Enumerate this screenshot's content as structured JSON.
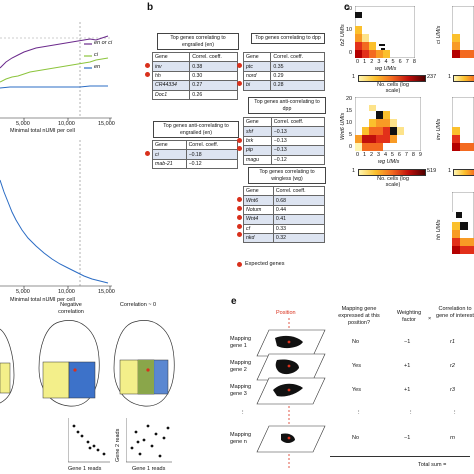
{
  "panel_labels": {
    "b": "b",
    "c": "c",
    "e": "e"
  },
  "panel_a_top": {
    "xlabel": "Minimal total nUMI per cell",
    "xticks": [
      "5,000",
      "10,000",
      "15,000"
    ],
    "legend": [
      {
        "label": "en or ci",
        "color": "#6b2a8c"
      },
      {
        "label": "ci",
        "color": "#8cc43c"
      },
      {
        "label": "en",
        "color": "#2b6cc4"
      }
    ]
  },
  "panel_a_bottom": {
    "xlabel": "Minimal total nUMI per cell",
    "xticks": [
      "5,000",
      "10,000",
      "15,000"
    ]
  },
  "panel_b": {
    "header": {
      "gene": "Gene",
      "coeff": "Correl. coeff."
    },
    "tables": [
      {
        "title": "Top genes correlating to engrailed (en)",
        "rows": [
          [
            "inv",
            "0.38"
          ],
          [
            "hh",
            "0.30"
          ],
          [
            "CR44334",
            "0.27"
          ],
          [
            "Doc1",
            "0.26"
          ]
        ]
      },
      {
        "title": "Top genes anti-correlating to engrailed (en)",
        "rows": [
          [
            "ci",
            "−0.18"
          ],
          [
            "mab-21",
            "−0.12"
          ]
        ]
      },
      {
        "title": "Top genes correlating to dpp",
        "rows": [
          [
            "ptc",
            "0.35"
          ],
          [
            "nord",
            "0.29"
          ],
          [
            "bi",
            "0.28"
          ]
        ]
      },
      {
        "title": "Top genes anti-correlating to dpp",
        "rows": [
          [
            "shf",
            "−0.13"
          ],
          [
            "brk",
            "−0.13"
          ],
          [
            "pip",
            "−0.13"
          ],
          [
            "magu",
            "−0.12"
          ]
        ]
      },
      {
        "title": "Top genes correlating to wingless (wg)",
        "rows": [
          [
            "Wnt6",
            "0.68"
          ],
          [
            "Notum",
            "0.44"
          ],
          [
            "Wnt4",
            "0.41"
          ],
          [
            "cf",
            "0.33"
          ],
          [
            "nkd",
            "0.32"
          ]
        ]
      }
    ],
    "legend": "Expected genes"
  },
  "panel_c": {
    "heatmaps": [
      {
        "ylabel": "fz2 UMIs",
        "xlabel": "wg UMIs",
        "cbar_max": "237",
        "yticks": [
          "0",
          "10",
          "20"
        ],
        "xticks": [
          "0",
          "1",
          "2",
          "3",
          "4",
          "5",
          "6",
          "7",
          "8"
        ]
      },
      {
        "ylabel": "Wnt6 UMIs",
        "xlabel": "wg UMIs",
        "cbar_max": "519",
        "yticks": [
          "0",
          "5",
          "10",
          "15",
          "20"
        ],
        "xticks": [
          "0",
          "1",
          "2",
          "3",
          "4",
          "5",
          "6",
          "7",
          "8",
          "9"
        ]
      }
    ],
    "cbar_label": "No. cells (log scale)",
    "cbar_min": "1",
    "right_labels": [
      "ci UMIs",
      "inv UMIs",
      "hh UMIs"
    ]
  },
  "panel_d": {
    "titles": [
      "Negative correlation",
      "Correlation ~ 0"
    ],
    "xlabel": "Gene 1 reads",
    "ylabel": "Gene 2 reads"
  },
  "panel_e": {
    "position_label": "Position",
    "columns": [
      "Mapping gene expressed at this position?",
      "Weighting factor",
      "×",
      "Correlation to gene of interest",
      "="
    ],
    "rows": [
      {
        "gene": "Mapping gene 1",
        "expressed": "No",
        "weight": "−1",
        "corr": "r1"
      },
      {
        "gene": "Mapping gene 2",
        "expressed": "Yes",
        "weight": "+1",
        "corr": "r2"
      },
      {
        "gene": "Mapping gene 3",
        "expressed": "Yes",
        "weight": "+1",
        "corr": "r3"
      },
      {
        "gene": "Mapping gene n",
        "expressed": "No",
        "weight": "−1",
        "corr": "rn"
      }
    ],
    "dots": "⋮",
    "total": "Total sum ="
  }
}
